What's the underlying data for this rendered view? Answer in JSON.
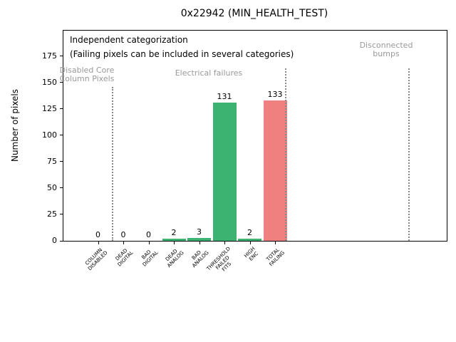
{
  "chart_data": {
    "type": "bar",
    "title": "0x22942 (MIN_HEALTH_TEST)",
    "ylabel": "Number of pixels",
    "xlabel": "",
    "categories": [
      "COLUMN\nDISABLED",
      "DEAD\nDIGITAL",
      "BAD\nDIGITAL",
      "DEAD\nANALOG",
      "BAD\nANALOG",
      "THRESHOLD\nFAILED\nFITS",
      "HIGH\nENC",
      "TOTAL\nFAILING"
    ],
    "values": [
      0,
      0,
      0,
      2,
      3,
      131,
      2,
      133
    ],
    "bar_value_labels": [
      "0",
      "0",
      "0",
      "2",
      "3",
      "131",
      "2",
      "133"
    ],
    "bar_colors": [
      "#3cb371",
      "#3cb371",
      "#3cb371",
      "#3cb371",
      "#3cb371",
      "#3cb371",
      "#3cb371",
      "#f08080"
    ],
    "yticks": [
      0,
      25,
      50,
      75,
      100,
      125,
      150,
      175
    ],
    "ylim": [
      0,
      199
    ],
    "grid": false,
    "legend": null,
    "annotation": {
      "line1": "Independent categorization",
      "line2": "(Failing pixels can be included in several categories)"
    },
    "regions": [
      {
        "label": "Disabled Core\nColumn Pixels"
      },
      {
        "label": "Electrical failures"
      },
      {
        "label": "Disconnected\nbumps"
      }
    ],
    "colors": {
      "bar_green": "#3cb371",
      "bar_red": "#f08080",
      "region_text": "#999999",
      "dotted_line": "#8a8a8a",
      "text": "#000000",
      "background": "#ffffff"
    }
  }
}
